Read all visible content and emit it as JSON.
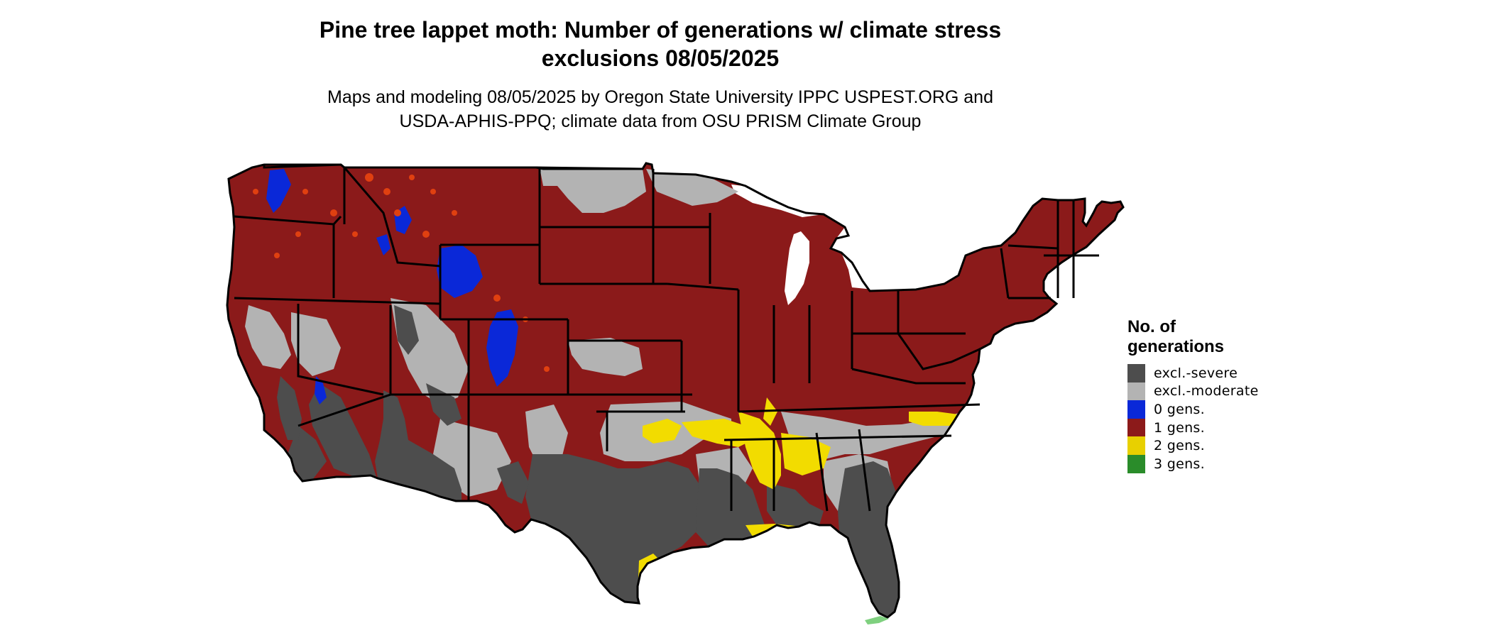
{
  "map": {
    "title_lines": [
      "Pine tree lappet moth: Number of generations w/ climate stress",
      "exclusions 08/05/2025"
    ],
    "subtitle_lines": [
      "Maps and modeling 08/05/2025 by Oregon State University IPPC USPEST.ORG and",
      "USDA-APHIS-PPQ; climate data from OSU PRISM Climate Group"
    ],
    "region": "Contiguous United States"
  },
  "legend": {
    "title_lines": [
      "No. of",
      "generations"
    ],
    "items": [
      {
        "label": "excl.-severe",
        "color": "#4d4d4d"
      },
      {
        "label": "excl.-moderate",
        "color": "#b3b3b3"
      },
      {
        "label": "0 gens.",
        "color": "#0a28d8"
      },
      {
        "label": "1 gens.",
        "color": "#8c1a1a"
      },
      {
        "label": "2 gens.",
        "color": "#e8d000"
      },
      {
        "label": "3 gens.",
        "color": "#2a8c2a"
      }
    ]
  },
  "colors": {
    "severe": "#4d4d4d",
    "moderate": "#b3b3b3",
    "zero_gens": "#0a28d8",
    "one_gen": "#8c1a1a",
    "one_gen_orange": "#e04010",
    "two_gens": "#f2dc00",
    "three_gens": "#2a8c2a",
    "borders": "#000000"
  }
}
